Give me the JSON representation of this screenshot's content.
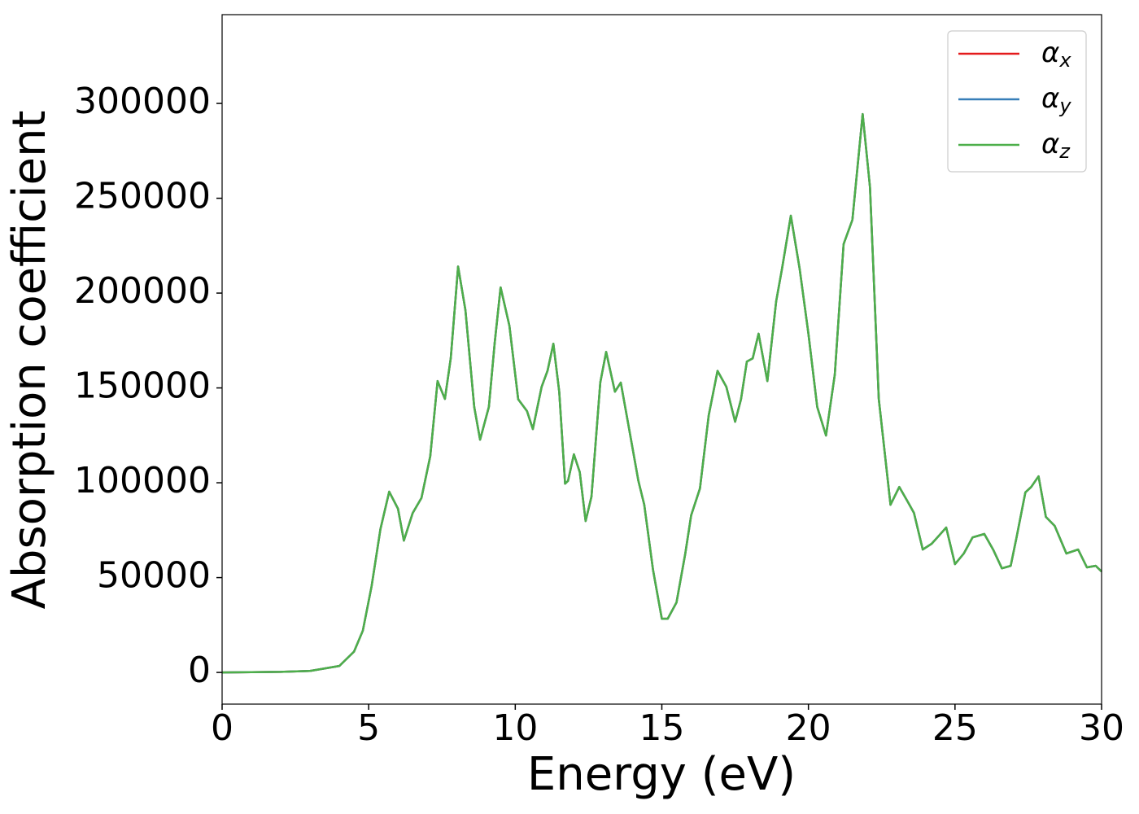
{
  "chart_data": {
    "type": "line",
    "xlabel": "Energy (eV)",
    "ylabel": "Absorption coefficient",
    "x": [
      0,
      2,
      3,
      4,
      4.5,
      4.8,
      5.1,
      5.4,
      5.7,
      6.0,
      6.2,
      6.5,
      6.8,
      7.1,
      7.35,
      7.6,
      7.8,
      8.05,
      8.3,
      8.6,
      8.8,
      9.1,
      9.3,
      9.5,
      9.8,
      10.1,
      10.4,
      10.6,
      10.9,
      11.1,
      11.3,
      11.5,
      11.7,
      11.8,
      12.0,
      12.2,
      12.4,
      12.6,
      12.9,
      13.1,
      13.4,
      13.6,
      13.9,
      14.2,
      14.4,
      14.7,
      15.0,
      15.2,
      15.5,
      15.8,
      16.0,
      16.3,
      16.6,
      16.9,
      17.2,
      17.5,
      17.7,
      17.9,
      18.1,
      18.3,
      18.6,
      18.9,
      19.1,
      19.4,
      19.7,
      20.0,
      20.3,
      20.6,
      20.9,
      21.2,
      21.5,
      21.85,
      22.1,
      22.4,
      22.8,
      23.1,
      23.4,
      23.6,
      23.9,
      24.2,
      24.4,
      24.7,
      25.0,
      25.3,
      25.6,
      26.0,
      26.3,
      26.6,
      26.9,
      27.1,
      27.4,
      27.6,
      27.85,
      28.1,
      28.4,
      28.8,
      29.2,
      29.5,
      29.8,
      30
    ],
    "series": [
      {
        "name": "αx",
        "color": "#e41a1c",
        "values": [
          0,
          300,
          800,
          3400,
          11000,
          22000,
          45500,
          75500,
          95300,
          86300,
          69500,
          84000,
          92000,
          114000,
          153600,
          144200,
          165700,
          214000,
          191000,
          140000,
          122700,
          140000,
          174000,
          203000,
          182800,
          144000,
          137800,
          128300,
          150600,
          159000,
          173300,
          148000,
          99500,
          101000,
          115000,
          105600,
          79800,
          92700,
          152800,
          169000,
          148000,
          152800,
          127000,
          101000,
          88400,
          54000,
          28300,
          28300,
          36900,
          62700,
          82800,
          97000,
          135600,
          159000,
          150600,
          132200,
          144000,
          163900,
          165600,
          178600,
          153600,
          195700,
          212900,
          240800,
          212900,
          178600,
          140000,
          124900,
          157100,
          225800,
          238600,
          294400,
          255800,
          144200,
          88400,
          97800,
          89700,
          84100,
          64800,
          67800,
          71200,
          76400,
          57100,
          62700,
          71200,
          73000,
          64800,
          54900,
          56200,
          71200,
          94900,
          97800,
          103400,
          82000,
          77300,
          62700,
          64800,
          55400,
          56200,
          53200
        ]
      },
      {
        "name": "αy",
        "color": "#377eb8",
        "values": [
          0,
          300,
          800,
          3400,
          11000,
          22000,
          45500,
          75500,
          95300,
          86300,
          69500,
          84000,
          92000,
          114000,
          153600,
          144200,
          165700,
          214000,
          191000,
          140000,
          122700,
          140000,
          174000,
          203000,
          182800,
          144000,
          137800,
          128300,
          150600,
          159000,
          173300,
          148000,
          99500,
          101000,
          115000,
          105600,
          79800,
          92700,
          152800,
          169000,
          148000,
          152800,
          127000,
          101000,
          88400,
          54000,
          28300,
          28300,
          36900,
          62700,
          82800,
          97000,
          135600,
          159000,
          150600,
          132200,
          144000,
          163900,
          165600,
          178600,
          153600,
          195700,
          212900,
          240800,
          212900,
          178600,
          140000,
          124900,
          157100,
          225800,
          238600,
          294400,
          255800,
          144200,
          88400,
          97800,
          89700,
          84100,
          64800,
          67800,
          71200,
          76400,
          57100,
          62700,
          71200,
          73000,
          64800,
          54900,
          56200,
          71200,
          94900,
          97800,
          103400,
          82000,
          77300,
          62700,
          64800,
          55400,
          56200,
          53200
        ]
      },
      {
        "name": "αz",
        "color": "#4daf4a",
        "values": [
          0,
          300,
          800,
          3400,
          11000,
          22000,
          45500,
          75500,
          95300,
          86300,
          69500,
          84000,
          92000,
          114000,
          153600,
          144200,
          165700,
          214000,
          191000,
          140000,
          122700,
          140000,
          174000,
          203000,
          182800,
          144000,
          137800,
          128300,
          150600,
          159000,
          173300,
          148000,
          99500,
          101000,
          115000,
          105600,
          79800,
          92700,
          152800,
          169000,
          148000,
          152800,
          127000,
          101000,
          88400,
          54000,
          28300,
          28300,
          36900,
          62700,
          82800,
          97000,
          135600,
          159000,
          150600,
          132200,
          144000,
          163900,
          165600,
          178600,
          153600,
          195700,
          212900,
          240800,
          212900,
          178600,
          140000,
          124900,
          157100,
          225800,
          238600,
          294400,
          255800,
          144200,
          88400,
          97800,
          89700,
          84100,
          64800,
          67800,
          71200,
          76400,
          57100,
          62700,
          71200,
          73000,
          64800,
          54900,
          56200,
          71200,
          94900,
          97800,
          103400,
          82000,
          77300,
          62700,
          64800,
          55400,
          56200,
          53200
        ]
      }
    ],
    "xlim": [
      0,
      30
    ],
    "xticks": [
      0,
      5,
      10,
      15,
      20,
      25,
      30
    ],
    "ylim": [
      -16700,
      346800
    ],
    "yticks": [
      0,
      50000,
      100000,
      150000,
      200000,
      250000,
      300000
    ],
    "grid": false,
    "legend": "upper right"
  }
}
